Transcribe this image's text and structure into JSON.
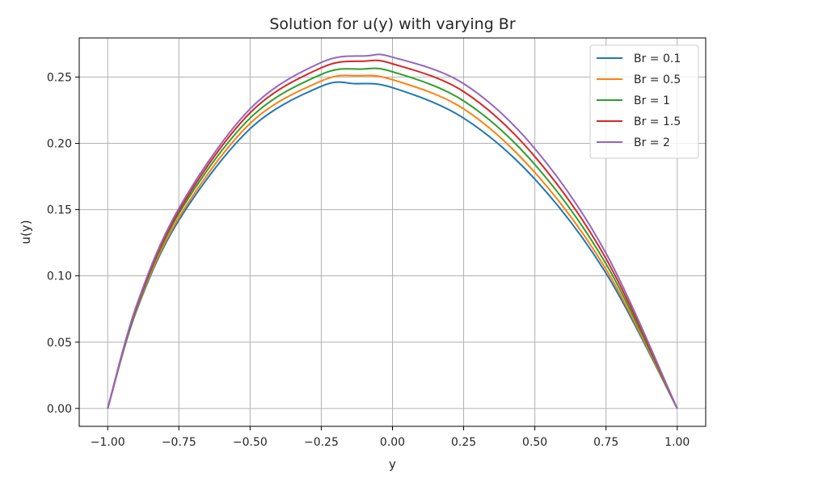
{
  "chart_data": {
    "type": "line",
    "title": "Solution for u(y) with varying Br",
    "xlabel": "y",
    "ylabel": "u(y)",
    "xlim": [
      -1.1,
      1.1
    ],
    "ylim": [
      -0.0135,
      0.2795
    ],
    "xticks": [
      -1.0,
      -0.75,
      -0.5,
      -0.25,
      0.0,
      0.25,
      0.5,
      0.75,
      1.0
    ],
    "xtick_labels": [
      "−1.00",
      "−0.75",
      "−0.50",
      "−0.25",
      "0.00",
      "0.25",
      "0.50",
      "0.75",
      "1.00"
    ],
    "yticks": [
      0.0,
      0.05,
      0.1,
      0.15,
      0.2,
      0.25
    ],
    "ytick_labels": [
      "0.00",
      "0.05",
      "0.10",
      "0.15",
      "0.20",
      "0.25"
    ],
    "grid": true,
    "legend_position": "top-right",
    "series": [
      {
        "name": "Br = 0.1",
        "color": "#1f77b4",
        "x": [
          -1.0,
          -0.9,
          -0.75,
          -0.5,
          -0.25,
          -0.13,
          0.0,
          0.25,
          0.5,
          0.75,
          1.0
        ],
        "y": [
          0.0,
          0.073,
          0.142,
          0.211,
          0.243,
          0.245,
          0.242,
          0.219,
          0.173,
          0.102,
          0.0
        ]
      },
      {
        "name": "Br = 0.5",
        "color": "#ff7f0e",
        "x": [
          -1.0,
          -0.9,
          -0.75,
          -0.5,
          -0.25,
          -0.12,
          0.0,
          0.25,
          0.5,
          0.75,
          1.0
        ],
        "y": [
          0.0,
          0.074,
          0.144,
          0.215,
          0.247,
          0.251,
          0.248,
          0.226,
          0.178,
          0.105,
          0.0
        ]
      },
      {
        "name": "Br = 1",
        "color": "#2ca02c",
        "x": [
          -1.0,
          -0.9,
          -0.75,
          -0.5,
          -0.25,
          -0.11,
          0.0,
          0.25,
          0.5,
          0.75,
          1.0
        ],
        "y": [
          0.0,
          0.075,
          0.147,
          0.219,
          0.252,
          0.256,
          0.254,
          0.232,
          0.184,
          0.109,
          0.0
        ]
      },
      {
        "name": "Br = 1.5",
        "color": "#d62728",
        "x": [
          -1.0,
          -0.9,
          -0.75,
          -0.5,
          -0.25,
          -0.1,
          0.0,
          0.25,
          0.5,
          0.75,
          1.0
        ],
        "y": [
          0.0,
          0.076,
          0.149,
          0.223,
          0.257,
          0.262,
          0.26,
          0.239,
          0.19,
          0.113,
          0.0
        ]
      },
      {
        "name": "Br = 2",
        "color": "#9467bd",
        "x": [
          -1.0,
          -0.9,
          -0.75,
          -0.5,
          -0.25,
          -0.09,
          0.0,
          0.25,
          0.5,
          0.75,
          1.0
        ],
        "y": [
          0.0,
          0.077,
          0.151,
          0.226,
          0.261,
          0.266,
          0.265,
          0.245,
          0.196,
          0.117,
          0.0
        ]
      }
    ]
  }
}
